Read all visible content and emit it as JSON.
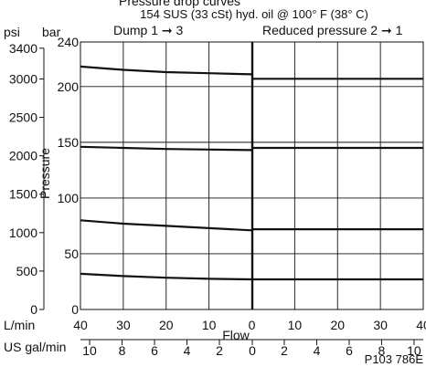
{
  "chart_data": {
    "type": "line",
    "title": "Pressure drop curves",
    "subtitle": "154 SUS (33 cSt) hyd. oil @ 100° F (38° C)",
    "ylabel": "Pressure",
    "xlabel": "Flow",
    "left_section_label": "Dump  1 ➞ 3",
    "right_section_label": "Reduced pressure  2 ➞ 1",
    "units": {
      "y_left": "psi",
      "y_right": "bar",
      "x_top": "L/min",
      "x_bottom": "US gal/min"
    },
    "y_bar_ticks": [
      0,
      50,
      100,
      150,
      200,
      240
    ],
    "y_psi_ticks": [
      0,
      500,
      1000,
      1500,
      2000,
      2500,
      3000,
      3400
    ],
    "ylim_bar": [
      0,
      240
    ],
    "x_lmin_ticks": [
      40,
      30,
      20,
      10,
      0,
      10,
      20,
      30,
      40
    ],
    "x_gpm_ticks": [
      10,
      8,
      6,
      4,
      2,
      0,
      2,
      4,
      6,
      8,
      10
    ],
    "xlim_lmin": [
      -40,
      40
    ],
    "grid": true,
    "figure_code": "P103 786E",
    "series": [
      {
        "dump_x": [
          -40,
          -30,
          -20,
          -10,
          0
        ],
        "dump_y": [
          218,
          215,
          213,
          212,
          211
        ],
        "reduced_x": [
          0,
          10,
          20,
          30,
          40
        ],
        "reduced_y": [
          207,
          207,
          207,
          207,
          207
        ]
      },
      {
        "dump_x": [
          -40,
          -30,
          -20,
          -10,
          0
        ],
        "dump_y": [
          146,
          145,
          144,
          143.5,
          143
        ],
        "reduced_x": [
          0,
          10,
          20,
          30,
          40
        ],
        "reduced_y": [
          145,
          145,
          145,
          145,
          145
        ]
      },
      {
        "dump_x": [
          -40,
          -30,
          -20,
          -10,
          0
        ],
        "dump_y": [
          80,
          77,
          75,
          73,
          71
        ],
        "reduced_x": [
          0,
          10,
          20,
          30,
          40
        ],
        "reduced_y": [
          72,
          72,
          72,
          72,
          72
        ]
      },
      {
        "dump_x": [
          -40,
          -30,
          -20,
          -10,
          0
        ],
        "dump_y": [
          32,
          30,
          28.5,
          27.5,
          27
        ],
        "reduced_x": [
          0,
          10,
          20,
          30,
          40
        ],
        "reduced_y": [
          27,
          27,
          27,
          27,
          27
        ]
      }
    ]
  }
}
